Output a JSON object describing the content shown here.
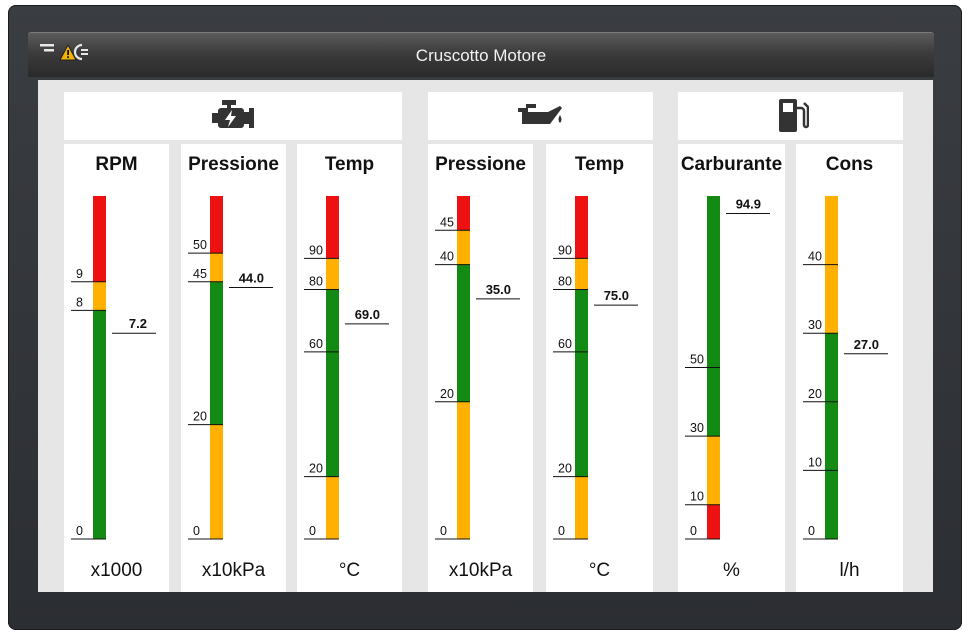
{
  "window": {
    "title": "Cruscotto Motore"
  },
  "groups": [
    {
      "icon": "engine-icon"
    },
    {
      "icon": "oil-can-icon"
    },
    {
      "icon": "fuel-pump-icon"
    }
  ],
  "gauges": [
    {
      "id": "rpm",
      "label": "RPM",
      "unit": "x1000",
      "min": 0,
      "max": 12,
      "value": 7.2,
      "value_text": "7.2",
      "ticks": [
        0,
        8,
        9
      ],
      "zones": [
        {
          "from": 0,
          "to": 8,
          "color": "#138a13"
        },
        {
          "from": 8,
          "to": 9,
          "color": "#ffb000"
        },
        {
          "from": 9,
          "to": 12,
          "color": "#ee1111"
        }
      ]
    },
    {
      "id": "engine-pressure",
      "label": "Pressione",
      "unit": "x10kPa",
      "min": 0,
      "max": 60,
      "value": 44.0,
      "value_text": "44.0",
      "ticks": [
        0,
        20,
        45,
        50
      ],
      "zones": [
        {
          "from": 0,
          "to": 20,
          "color": "#ffb000"
        },
        {
          "from": 20,
          "to": 45,
          "color": "#138a13"
        },
        {
          "from": 45,
          "to": 50,
          "color": "#ffb000"
        },
        {
          "from": 50,
          "to": 60,
          "color": "#ee1111"
        }
      ]
    },
    {
      "id": "engine-temp",
      "label": "Temp",
      "unit": "°C",
      "min": 0,
      "max": 110,
      "value": 69.0,
      "value_text": "69.0",
      "ticks": [
        0,
        20,
        60,
        80,
        90
      ],
      "zones": [
        {
          "from": 0,
          "to": 20,
          "color": "#ffb000"
        },
        {
          "from": 20,
          "to": 80,
          "color": "#138a13"
        },
        {
          "from": 80,
          "to": 90,
          "color": "#ffb000"
        },
        {
          "from": 90,
          "to": 110,
          "color": "#ee1111"
        }
      ]
    },
    {
      "id": "oil-pressure",
      "label": "Pressione",
      "unit": "x10kPa",
      "min": 0,
      "max": 50,
      "value": 35.0,
      "value_text": "35.0",
      "ticks": [
        0,
        20,
        40,
        45
      ],
      "zones": [
        {
          "from": 0,
          "to": 20,
          "color": "#ffb000"
        },
        {
          "from": 20,
          "to": 40,
          "color": "#138a13"
        },
        {
          "from": 40,
          "to": 45,
          "color": "#ffb000"
        },
        {
          "from": 45,
          "to": 50,
          "color": "#ee1111"
        }
      ]
    },
    {
      "id": "oil-temp",
      "label": "Temp",
      "unit": "°C",
      "min": 0,
      "max": 110,
      "value": 75.0,
      "value_text": "75.0",
      "ticks": [
        0,
        20,
        60,
        80,
        90
      ],
      "zones": [
        {
          "from": 0,
          "to": 20,
          "color": "#ffb000"
        },
        {
          "from": 20,
          "to": 80,
          "color": "#138a13"
        },
        {
          "from": 80,
          "to": 90,
          "color": "#ffb000"
        },
        {
          "from": 90,
          "to": 110,
          "color": "#ee1111"
        }
      ]
    },
    {
      "id": "fuel-level",
      "label": "Carburante",
      "unit": "%",
      "min": 0,
      "max": 100,
      "value": 94.9,
      "value_text": "94.9",
      "ticks": [
        0,
        10,
        30,
        50
      ],
      "zones": [
        {
          "from": 0,
          "to": 10,
          "color": "#ee1111"
        },
        {
          "from": 10,
          "to": 30,
          "color": "#ffb000"
        },
        {
          "from": 30,
          "to": 100,
          "color": "#138a13"
        }
      ]
    },
    {
      "id": "fuel-consumption",
      "label": "Cons",
      "unit": "l/h",
      "min": 0,
      "max": 50,
      "value": 27.0,
      "value_text": "27.0",
      "ticks": [
        0,
        10,
        20,
        30,
        40
      ],
      "zones": [
        {
          "from": 0,
          "to": 30,
          "color": "#138a13"
        },
        {
          "from": 30,
          "to": 50,
          "color": "#ffb000"
        }
      ]
    }
  ]
}
